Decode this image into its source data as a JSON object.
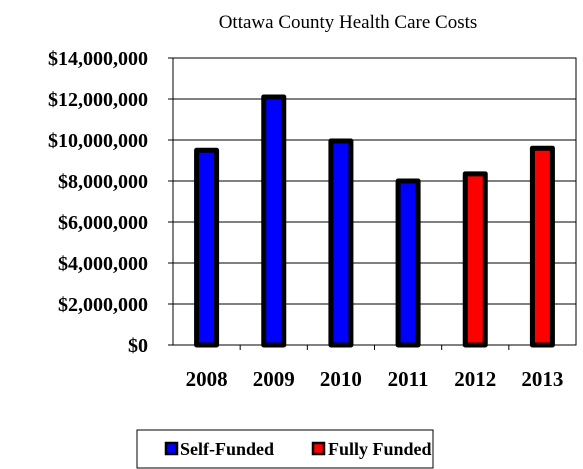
{
  "chart_data": {
    "type": "bar",
    "title": "Ottawa County Health Care Costs",
    "categories": [
      "2008",
      "2009",
      "2010",
      "2011",
      "2012",
      "2013"
    ],
    "values": [
      9500000,
      12100000,
      9950000,
      8000000,
      8350000,
      9600000
    ],
    "funding": [
      "Self-Funded",
      "Self-Funded",
      "Self-Funded",
      "Self-Funded",
      "Fully Funded",
      "Fully Funded"
    ],
    "yticks": [
      "$0",
      "$2,000,000",
      "$4,000,000",
      "$6,000,000",
      "$8,000,000",
      "$10,000,000",
      "$12,000,000",
      "$14,000,000"
    ],
    "ylim": [
      0,
      14000000
    ],
    "grid": true,
    "legend_position": "bottom",
    "legend": [
      {
        "label": "Self-Funded",
        "color": "#0000ff"
      },
      {
        "label": "Fully Funded",
        "color": "#ff0000"
      }
    ]
  }
}
